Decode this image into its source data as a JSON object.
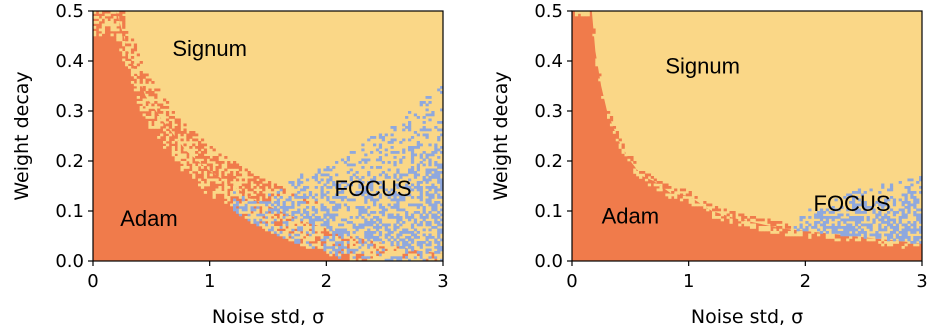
{
  "chart_data": [
    {
      "type": "heatmap",
      "xlabel": "Noise std, σ",
      "ylabel": "Weight decay",
      "xlim": [
        0,
        3
      ],
      "ylim": [
        0,
        0.5
      ],
      "x_ticks": [
        "0",
        "1",
        "2",
        "3"
      ],
      "y_ticks": [
        "0.0",
        "0.1",
        "0.2",
        "0.3",
        "0.4",
        "0.5"
      ],
      "grid": false,
      "categories": [
        "Adam",
        "Signum",
        "FOCUS"
      ],
      "colors": {
        "Adam": "#f07b4b",
        "Signum": "#fad787",
        "FOCUS": "#8fa8de"
      },
      "region_labels": [
        {
          "text": "Signum",
          "x": 1.0,
          "y": 0.41
        },
        {
          "text": "FOCUS",
          "x": 2.4,
          "y": 0.13
        },
        {
          "text": "Adam",
          "x": 0.48,
          "y": 0.07
        }
      ],
      "boundary_adam": [
        [
          0.0,
          0.5
        ],
        [
          0.2,
          0.5
        ],
        [
          0.3,
          0.42
        ],
        [
          0.45,
          0.33
        ],
        [
          0.6,
          0.28
        ],
        [
          0.8,
          0.22
        ],
        [
          1.0,
          0.18
        ],
        [
          1.2,
          0.15
        ],
        [
          1.4,
          0.12
        ],
        [
          1.6,
          0.1
        ],
        [
          1.8,
          0.08
        ],
        [
          2.0,
          0.065
        ],
        [
          2.2,
          0.05
        ],
        [
          2.4,
          0.04
        ],
        [
          2.6,
          0.03
        ],
        [
          2.8,
          0.02
        ],
        [
          3.0,
          0.015
        ]
      ],
      "boundary_focus": [
        [
          1.2,
          0.08
        ],
        [
          1.4,
          0.12
        ],
        [
          1.6,
          0.15
        ],
        [
          1.8,
          0.18
        ],
        [
          2.0,
          0.2
        ],
        [
          2.2,
          0.22
        ],
        [
          2.4,
          0.25
        ],
        [
          2.6,
          0.28
        ],
        [
          2.8,
          0.32
        ],
        [
          3.0,
          0.35
        ]
      ]
    },
    {
      "type": "heatmap",
      "xlabel": "Noise std, σ",
      "ylabel": "Weight decay",
      "xlim": [
        0,
        3
      ],
      "ylim": [
        0,
        0.5
      ],
      "x_ticks": [
        "0",
        "1",
        "2",
        "3"
      ],
      "y_ticks": [
        "0.0",
        "0.1",
        "0.2",
        "0.3",
        "0.4",
        "0.5"
      ],
      "grid": false,
      "categories": [
        "Adam",
        "Signum",
        "FOCUS"
      ],
      "colors": {
        "Adam": "#f07b4b",
        "Signum": "#fad787",
        "FOCUS": "#8fa8de"
      },
      "region_labels": [
        {
          "text": "Signum",
          "x": 1.12,
          "y": 0.375
        },
        {
          "text": "FOCUS",
          "x": 2.4,
          "y": 0.1
        },
        {
          "text": "Adam",
          "x": 0.5,
          "y": 0.075
        }
      ],
      "boundary_adam": [
        [
          0.0,
          0.5
        ],
        [
          0.17,
          0.5
        ],
        [
          0.2,
          0.42
        ],
        [
          0.25,
          0.35
        ],
        [
          0.3,
          0.3
        ],
        [
          0.4,
          0.24
        ],
        [
          0.5,
          0.2
        ],
        [
          0.6,
          0.17
        ],
        [
          0.7,
          0.16
        ],
        [
          0.85,
          0.135
        ],
        [
          1.0,
          0.13
        ],
        [
          1.2,
          0.1
        ],
        [
          1.4,
          0.085
        ],
        [
          1.6,
          0.075
        ],
        [
          1.8,
          0.065
        ],
        [
          2.0,
          0.06
        ],
        [
          2.2,
          0.055
        ],
        [
          2.4,
          0.05
        ],
        [
          2.6,
          0.045
        ],
        [
          2.8,
          0.04
        ],
        [
          3.0,
          0.035
        ]
      ],
      "boundary_focus": [
        [
          1.9,
          0.07
        ],
        [
          2.0,
          0.1
        ],
        [
          2.2,
          0.12
        ],
        [
          2.4,
          0.14
        ],
        [
          2.6,
          0.15
        ],
        [
          2.8,
          0.16
        ],
        [
          3.0,
          0.17
        ]
      ]
    }
  ]
}
